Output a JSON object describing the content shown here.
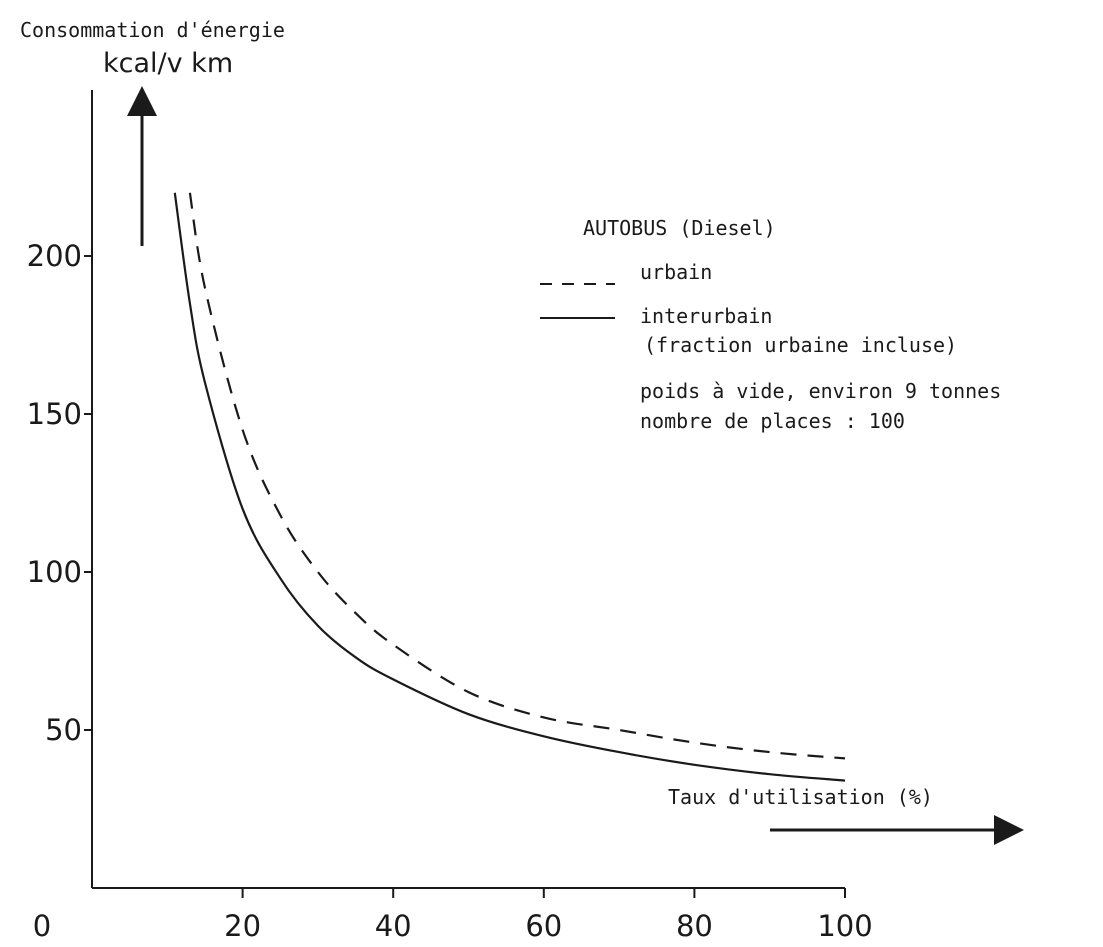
{
  "chart_data": {
    "type": "line",
    "title": "Consommation d'énergie",
    "ylabel": "kcal/v km",
    "xlabel": "Taux d'utilisation (%)",
    "xlim": [
      0,
      100
    ],
    "ylim": [
      0,
      220
    ],
    "x_ticks": [
      "0",
      "20",
      "40",
      "60",
      "80",
      "100"
    ],
    "y_ticks": [
      "50",
      "100",
      "150",
      "200"
    ],
    "legend_title": "AUTOBUS (Diesel)",
    "series": [
      {
        "name": "urbain",
        "style": "dashed",
        "x": [
          13,
          15,
          20,
          25,
          30,
          35,
          40,
          50,
          60,
          70,
          80,
          90,
          100
        ],
        "y": [
          220,
          190,
          145,
          118,
          100,
          87,
          77,
          62,
          54,
          50,
          46,
          43,
          41
        ]
      },
      {
        "name": "interurbain",
        "style": "solid",
        "x": [
          11,
          13,
          15,
          20,
          25,
          30,
          35,
          40,
          50,
          60,
          70,
          80,
          90,
          100
        ],
        "y": [
          220,
          185,
          160,
          120,
          98,
          83,
          73,
          66,
          55,
          48,
          43,
          39,
          36,
          34
        ]
      }
    ],
    "legend_note": "(fraction urbaine incluse)",
    "annotations": [
      "poids à vide, environ 9 tonnes",
      "nombre de places : 100"
    ],
    "grid": false,
    "legend_position": "top-right"
  }
}
